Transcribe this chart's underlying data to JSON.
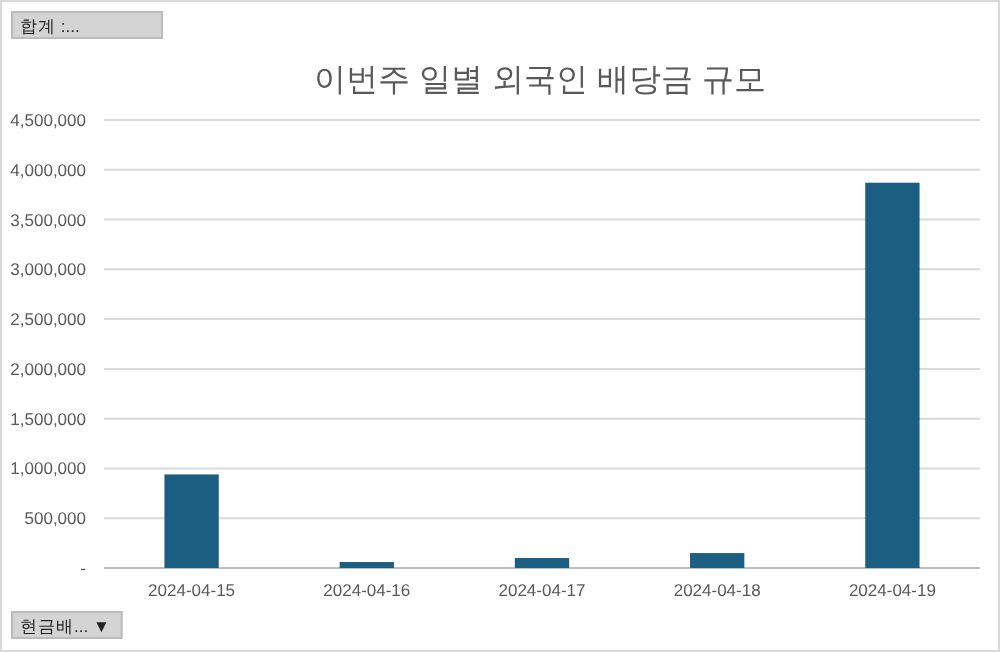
{
  "chart_data": {
    "type": "bar",
    "title": "이번주 일별 외국인 배당금 규모",
    "categories": [
      "2024-04-15",
      "2024-04-16",
      "2024-04-17",
      "2024-04-18",
      "2024-04-19"
    ],
    "values": [
      940000,
      60000,
      100000,
      150000,
      3870000
    ],
    "color": "#1b5e82",
    "ylim": [
      0,
      4500000
    ],
    "yticks": [
      {
        "value": 0,
        "label": "-"
      },
      {
        "value": 500000,
        "label": "500,000"
      },
      {
        "value": 1000000,
        "label": "1,000,000"
      },
      {
        "value": 1500000,
        "label": "1,500,000"
      },
      {
        "value": 2000000,
        "label": "2,000,000"
      },
      {
        "value": 2500000,
        "label": "2,500,000"
      },
      {
        "value": 3000000,
        "label": "3,000,000"
      },
      {
        "value": 3500000,
        "label": "3,500,000"
      },
      {
        "value": 4000000,
        "label": "4,000,000"
      },
      {
        "value": 4500000,
        "label": "4,500,000"
      }
    ],
    "grid": "y",
    "annotations": [
      "합계 :...",
      "현금배... ▼"
    ]
  }
}
